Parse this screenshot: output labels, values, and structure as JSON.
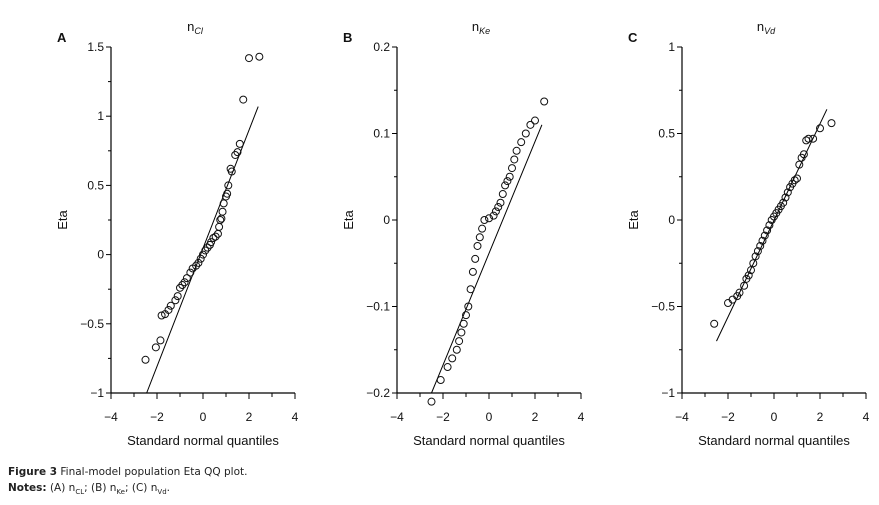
{
  "caption": {
    "figure_label": "Figure 3",
    "figure_text": "Final-model population Eta QQ plot.",
    "notes_label": "Notes:",
    "notes": [
      {
        "key": "(A)",
        "base": "n",
        "sub": "CL"
      },
      {
        "key": "(B)",
        "base": "n",
        "sub": "Ke"
      },
      {
        "key": "(C)",
        "base": "n",
        "sub": "Vd"
      }
    ]
  },
  "chart_data": [
    {
      "type": "scatter",
      "panel": "A",
      "title_base": "n",
      "title_sub": "Cl",
      "xlabel": "Standard normal quantiles",
      "ylabel": "Eta",
      "xlim": [
        -4,
        4
      ],
      "ylim": [
        -1,
        1.5
      ],
      "xticks": [
        -4,
        -2,
        0,
        2,
        4
      ],
      "xtick_labels": [
        "−4",
        "−2",
        "0",
        "2",
        "4"
      ],
      "yticks": [
        1.5,
        1,
        0.5,
        0,
        -0.5,
        -1
      ],
      "ytick_labels": [
        "1.5",
        "1",
        "0.5",
        "0",
        "−0.5",
        "−1"
      ],
      "reference_line": [
        [
          -2.45,
          -1.0
        ],
        [
          2.4,
          1.07
        ]
      ],
      "points": [
        [
          2.45,
          1.43
        ],
        [
          2.0,
          1.42
        ],
        [
          1.75,
          1.12
        ],
        [
          1.6,
          0.8
        ],
        [
          1.5,
          0.74
        ],
        [
          1.4,
          0.72
        ],
        [
          1.25,
          0.6
        ],
        [
          1.2,
          0.62
        ],
        [
          1.1,
          0.5
        ],
        [
          1.05,
          0.44
        ],
        [
          1.0,
          0.42
        ],
        [
          0.9,
          0.37
        ],
        [
          0.85,
          0.31
        ],
        [
          0.8,
          0.26
        ],
        [
          0.75,
          0.25
        ],
        [
          0.7,
          0.2
        ],
        [
          0.65,
          0.15
        ],
        [
          0.55,
          0.13
        ],
        [
          0.45,
          0.12
        ],
        [
          0.35,
          0.09
        ],
        [
          0.3,
          0.07
        ],
        [
          0.2,
          0.05
        ],
        [
          0.1,
          0.03
        ],
        [
          0.0,
          0.0
        ],
        [
          -0.1,
          -0.03
        ],
        [
          -0.2,
          -0.06
        ],
        [
          -0.3,
          -0.08
        ],
        [
          -0.45,
          -0.1
        ],
        [
          -0.55,
          -0.13
        ],
        [
          -0.7,
          -0.17
        ],
        [
          -0.8,
          -0.2
        ],
        [
          -0.9,
          -0.22
        ],
        [
          -1.0,
          -0.24
        ],
        [
          -1.1,
          -0.3
        ],
        [
          -1.2,
          -0.33
        ],
        [
          -1.4,
          -0.37
        ],
        [
          -1.5,
          -0.4
        ],
        [
          -1.65,
          -0.43
        ],
        [
          -1.8,
          -0.44
        ],
        [
          -1.85,
          -0.62
        ],
        [
          -2.05,
          -0.67
        ],
        [
          -2.5,
          -0.76
        ]
      ]
    },
    {
      "type": "scatter",
      "panel": "B",
      "title_base": "n",
      "title_sub": "Ke",
      "xlabel": "Standard normal quantiles",
      "ylabel": "Eta",
      "xlim": [
        -4,
        4
      ],
      "ylim": [
        -0.2,
        0.2
      ],
      "xticks": [
        -4,
        -2,
        0,
        2,
        4
      ],
      "xtick_labels": [
        "−4",
        "−2",
        "0",
        "2",
        "4"
      ],
      "yticks": [
        0.2,
        0.1,
        0,
        -0.1,
        -0.2
      ],
      "ytick_labels": [
        "0.2",
        "0.1",
        "0",
        "−0.1",
        "−0.2"
      ],
      "reference_line": [
        [
          -2.5,
          -0.2
        ],
        [
          2.3,
          0.11
        ]
      ],
      "points": [
        [
          -2.5,
          -0.21
        ],
        [
          -2.1,
          -0.185
        ],
        [
          -1.8,
          -0.17
        ],
        [
          -1.6,
          -0.16
        ],
        [
          -1.4,
          -0.15
        ],
        [
          -1.3,
          -0.14
        ],
        [
          -1.2,
          -0.13
        ],
        [
          -1.1,
          -0.12
        ],
        [
          -1.0,
          -0.11
        ],
        [
          -0.9,
          -0.1
        ],
        [
          -0.8,
          -0.08
        ],
        [
          -0.7,
          -0.06
        ],
        [
          -0.6,
          -0.045
        ],
        [
          -0.5,
          -0.03
        ],
        [
          -0.4,
          -0.02
        ],
        [
          -0.3,
          -0.01
        ],
        [
          -0.2,
          0.0
        ],
        [
          0.0,
          0.002
        ],
        [
          0.2,
          0.005
        ],
        [
          0.3,
          0.01
        ],
        [
          0.4,
          0.015
        ],
        [
          0.5,
          0.02
        ],
        [
          0.6,
          0.03
        ],
        [
          0.7,
          0.04
        ],
        [
          0.8,
          0.045
        ],
        [
          0.9,
          0.05
        ],
        [
          1.0,
          0.06
        ],
        [
          1.1,
          0.07
        ],
        [
          1.2,
          0.08
        ],
        [
          1.4,
          0.09
        ],
        [
          1.6,
          0.1
        ],
        [
          1.8,
          0.11
        ],
        [
          2.0,
          0.115
        ],
        [
          2.4,
          0.137
        ]
      ]
    },
    {
      "type": "scatter",
      "panel": "C",
      "title_base": "n",
      "title_sub": "Vd",
      "xlabel": "Standard normal quantiles",
      "ylabel": "Eta",
      "xlim": [
        -4,
        4
      ],
      "ylim": [
        -1,
        1
      ],
      "xticks": [
        -4,
        -2,
        0,
        2,
        4
      ],
      "xtick_labels": [
        "−4",
        "−2",
        "0",
        "2",
        "4"
      ],
      "yticks": [
        1,
        0.5,
        0,
        -0.5,
        -1
      ],
      "ytick_labels": [
        "1",
        "0.5",
        "0",
        "−0.5",
        "−1"
      ],
      "reference_line": [
        [
          -2.5,
          -0.7
        ],
        [
          2.3,
          0.64
        ]
      ],
      "points": [
        [
          -2.6,
          -0.6
        ],
        [
          -2.0,
          -0.48
        ],
        [
          -1.8,
          -0.46
        ],
        [
          -1.6,
          -0.44
        ],
        [
          -1.5,
          -0.42
        ],
        [
          -1.3,
          -0.38
        ],
        [
          -1.2,
          -0.34
        ],
        [
          -1.1,
          -0.32
        ],
        [
          -1.0,
          -0.29
        ],
        [
          -0.9,
          -0.25
        ],
        [
          -0.8,
          -0.21
        ],
        [
          -0.7,
          -0.18
        ],
        [
          -0.6,
          -0.15
        ],
        [
          -0.5,
          -0.12
        ],
        [
          -0.4,
          -0.09
        ],
        [
          -0.3,
          -0.06
        ],
        [
          -0.2,
          -0.03
        ],
        [
          -0.1,
          0.0
        ],
        [
          0.0,
          0.02
        ],
        [
          0.1,
          0.04
        ],
        [
          0.2,
          0.06
        ],
        [
          0.3,
          0.08
        ],
        [
          0.4,
          0.1
        ],
        [
          0.5,
          0.13
        ],
        [
          0.6,
          0.16
        ],
        [
          0.7,
          0.19
        ],
        [
          0.8,
          0.21
        ],
        [
          0.9,
          0.23
        ],
        [
          1.0,
          0.24
        ],
        [
          1.1,
          0.32
        ],
        [
          1.2,
          0.36
        ],
        [
          1.3,
          0.38
        ],
        [
          1.4,
          0.46
        ],
        [
          1.5,
          0.47
        ],
        [
          1.7,
          0.47
        ],
        [
          2.0,
          0.53
        ],
        [
          2.5,
          0.56
        ]
      ]
    }
  ]
}
